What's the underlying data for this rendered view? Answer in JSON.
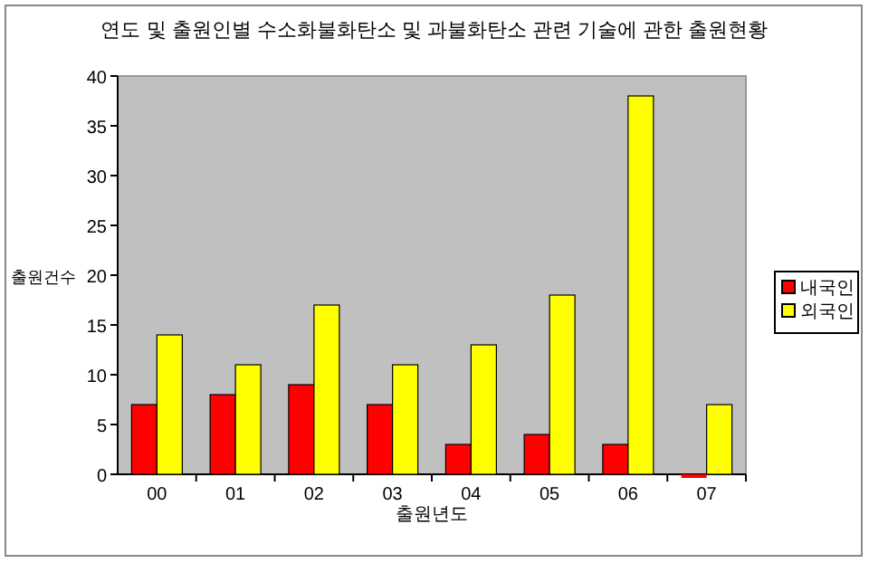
{
  "chart_data": {
    "type": "bar",
    "title": "연도 및 출원인별 수소화불화탄소 및 과불화탄소 관련 기술에 관한 출원현황",
    "xlabel": "출원년도",
    "ylabel": "출원건수",
    "categories": [
      "00",
      "01",
      "02",
      "03",
      "04",
      "05",
      "06",
      "07"
    ],
    "series": [
      {
        "name": "내국인",
        "color": "#ff0000",
        "values": [
          7,
          8,
          9,
          7,
          3,
          4,
          3,
          0
        ]
      },
      {
        "name": "외국인",
        "color": "#ffff00",
        "values": [
          14,
          11,
          17,
          11,
          13,
          18,
          38,
          7
        ]
      }
    ],
    "ylim": [
      0,
      40
    ],
    "yticks": [
      0,
      5,
      10,
      15,
      20,
      25,
      30,
      35,
      40
    ],
    "legend": "right"
  }
}
